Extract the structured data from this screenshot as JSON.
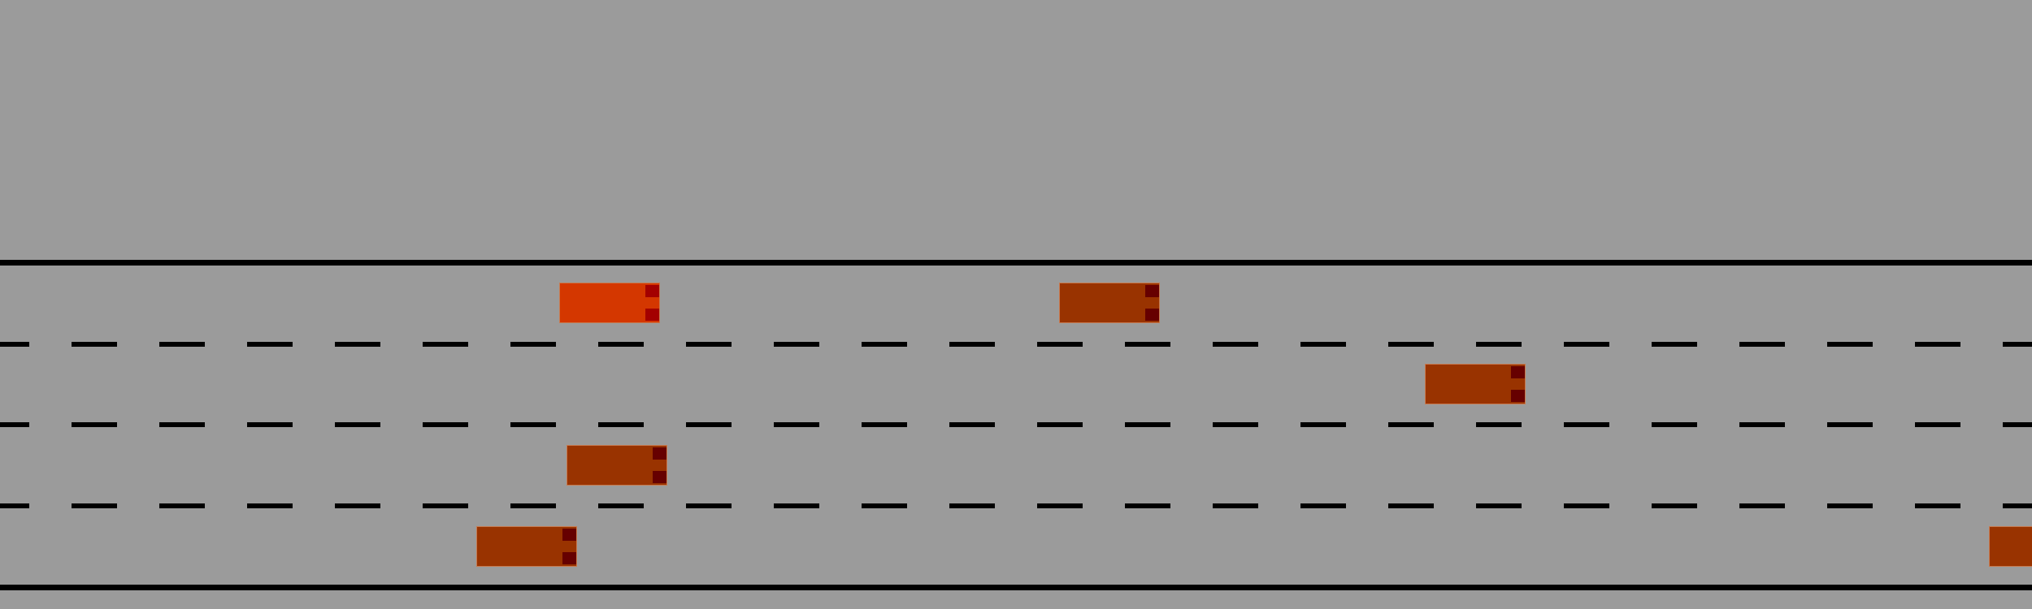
{
  "scene": {
    "background_color": "#9b9b9b",
    "road_line_color": "#000000",
    "lane_count": 4
  },
  "cars": [
    {
      "id": "player",
      "lane": 1,
      "body_color": "#d43700",
      "light_color": "#a30000"
    },
    {
      "id": "traffic",
      "lane": 1,
      "body_color": "#993300",
      "light_color": "#660000"
    },
    {
      "id": "traffic",
      "lane": 2,
      "body_color": "#993300",
      "light_color": "#660000"
    },
    {
      "id": "traffic",
      "lane": 3,
      "body_color": "#993300",
      "light_color": "#660000"
    },
    {
      "id": "traffic",
      "lane": 4,
      "body_color": "#993300",
      "light_color": "#660000"
    },
    {
      "id": "traffic",
      "lane": 4,
      "body_color": "#993300",
      "light_color": "#660000"
    }
  ]
}
